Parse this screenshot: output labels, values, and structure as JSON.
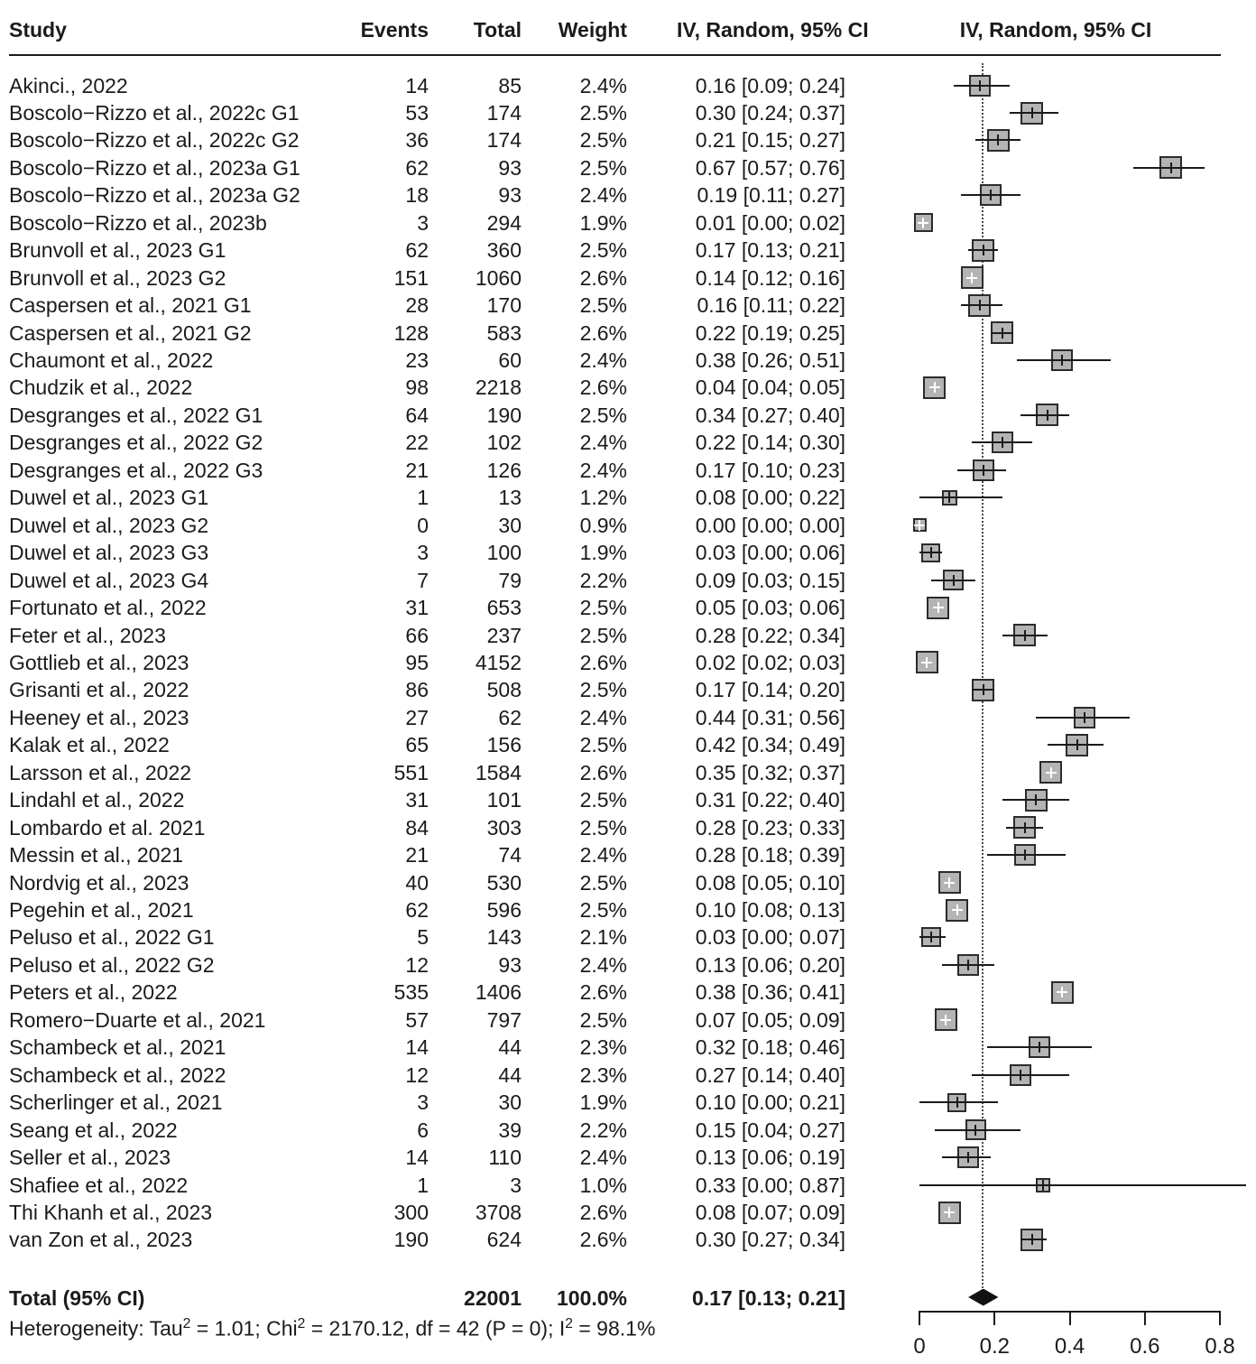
{
  "chart_data": {
    "type": "forest",
    "effect_measure_note": "proportions with 95% confidence intervals, inverse-variance random-effects model",
    "headers": {
      "study": "Study",
      "events": "Events",
      "total": "Total",
      "weight": "Weight",
      "ci": "IV, Random, 95% CI",
      "plot": "IV, Random, 95% CI"
    },
    "rows": [
      {
        "study": "Akinci., 2022",
        "events": "14",
        "total": "85",
        "weight": "2.4%",
        "ci": "0.16 [0.09; 0.24]",
        "est": 0.16,
        "lo": 0.09,
        "hi": 0.24,
        "w": 2.4
      },
      {
        "study": "Boscolo−Rizzo et al., 2022c G1",
        "events": "53",
        "total": "174",
        "weight": "2.5%",
        "ci": "0.30 [0.24; 0.37]",
        "est": 0.3,
        "lo": 0.24,
        "hi": 0.37,
        "w": 2.5
      },
      {
        "study": "Boscolo−Rizzo et al., 2022c G2",
        "events": "36",
        "total": "174",
        "weight": "2.5%",
        "ci": "0.21 [0.15; 0.27]",
        "est": 0.21,
        "lo": 0.15,
        "hi": 0.27,
        "w": 2.5
      },
      {
        "study": "Boscolo−Rizzo et al., 2023a G1",
        "events": "62",
        "total": "93",
        "weight": "2.5%",
        "ci": "0.67 [0.57; 0.76]",
        "est": 0.67,
        "lo": 0.57,
        "hi": 0.76,
        "w": 2.5
      },
      {
        "study": "Boscolo−Rizzo et al., 2023a G2",
        "events": "18",
        "total": "93",
        "weight": "2.4%",
        "ci": "0.19 [0.11; 0.27]",
        "est": 0.19,
        "lo": 0.11,
        "hi": 0.27,
        "w": 2.4
      },
      {
        "study": "Boscolo−Rizzo et al., 2023b",
        "events": "3",
        "total": "294",
        "weight": "1.9%",
        "ci": "0.01 [0.00; 0.02]",
        "est": 0.01,
        "lo": 0.0,
        "hi": 0.02,
        "w": 1.9
      },
      {
        "study": "Brunvoll et al., 2023 G1",
        "events": "62",
        "total": "360",
        "weight": "2.5%",
        "ci": "0.17 [0.13; 0.21]",
        "est": 0.17,
        "lo": 0.13,
        "hi": 0.21,
        "w": 2.5
      },
      {
        "study": "Brunvoll et al., 2023 G2",
        "events": "151",
        "total": "1060",
        "weight": "2.6%",
        "ci": "0.14 [0.12; 0.16]",
        "est": 0.14,
        "lo": 0.12,
        "hi": 0.16,
        "w": 2.6
      },
      {
        "study": "Caspersen et al., 2021 G1",
        "events": "28",
        "total": "170",
        "weight": "2.5%",
        "ci": "0.16 [0.11; 0.22]",
        "est": 0.16,
        "lo": 0.11,
        "hi": 0.22,
        "w": 2.5
      },
      {
        "study": "Caspersen et al., 2021 G2",
        "events": "128",
        "total": "583",
        "weight": "2.6%",
        "ci": "0.22 [0.19; 0.25]",
        "est": 0.22,
        "lo": 0.19,
        "hi": 0.25,
        "w": 2.6
      },
      {
        "study": "Chaumont et al., 2022",
        "events": "23",
        "total": "60",
        "weight": "2.4%",
        "ci": "0.38 [0.26; 0.51]",
        "est": 0.38,
        "lo": 0.26,
        "hi": 0.51,
        "w": 2.4
      },
      {
        "study": "Chudzik et al., 2022",
        "events": "98",
        "total": "2218",
        "weight": "2.6%",
        "ci": "0.04 [0.04; 0.05]",
        "est": 0.04,
        "lo": 0.04,
        "hi": 0.05,
        "w": 2.6
      },
      {
        "study": "Desgranges et al., 2022 G1",
        "events": "64",
        "total": "190",
        "weight": "2.5%",
        "ci": "0.34 [0.27; 0.40]",
        "est": 0.34,
        "lo": 0.27,
        "hi": 0.4,
        "w": 2.5
      },
      {
        "study": "Desgranges et al., 2022 G2",
        "events": "22",
        "total": "102",
        "weight": "2.4%",
        "ci": "0.22 [0.14; 0.30]",
        "est": 0.22,
        "lo": 0.14,
        "hi": 0.3,
        "w": 2.4
      },
      {
        "study": "Desgranges et al., 2022 G3",
        "events": "21",
        "total": "126",
        "weight": "2.4%",
        "ci": "0.17 [0.10; 0.23]",
        "est": 0.17,
        "lo": 0.1,
        "hi": 0.23,
        "w": 2.4
      },
      {
        "study": "Duwel et al., 2023 G1",
        "events": "1",
        "total": "13",
        "weight": "1.2%",
        "ci": "0.08 [0.00; 0.22]",
        "est": 0.08,
        "lo": 0.0,
        "hi": 0.22,
        "w": 1.2
      },
      {
        "study": "Duwel et al., 2023 G2",
        "events": "0",
        "total": "30",
        "weight": "0.9%",
        "ci": "0.00 [0.00; 0.00]",
        "est": 0.0,
        "lo": 0.0,
        "hi": 0.0,
        "w": 0.9
      },
      {
        "study": "Duwel et al., 2023 G3",
        "events": "3",
        "total": "100",
        "weight": "1.9%",
        "ci": "0.03 [0.00; 0.06]",
        "est": 0.03,
        "lo": 0.0,
        "hi": 0.06,
        "w": 1.9
      },
      {
        "study": "Duwel et al., 2023 G4",
        "events": "7",
        "total": "79",
        "weight": "2.2%",
        "ci": "0.09 [0.03; 0.15]",
        "est": 0.09,
        "lo": 0.03,
        "hi": 0.15,
        "w": 2.2
      },
      {
        "study": "Fortunato et al., 2022",
        "events": "31",
        "total": "653",
        "weight": "2.5%",
        "ci": "0.05 [0.03; 0.06]",
        "est": 0.05,
        "lo": 0.03,
        "hi": 0.06,
        "w": 2.5
      },
      {
        "study": "Feter et al., 2023",
        "events": "66",
        "total": "237",
        "weight": "2.5%",
        "ci": "0.28 [0.22; 0.34]",
        "est": 0.28,
        "lo": 0.22,
        "hi": 0.34,
        "w": 2.5
      },
      {
        "study": "Gottlieb et al., 2023",
        "events": "95",
        "total": "4152",
        "weight": "2.6%",
        "ci": "0.02 [0.02; 0.03]",
        "est": 0.02,
        "lo": 0.02,
        "hi": 0.03,
        "w": 2.6
      },
      {
        "study": "Grisanti et al., 2022",
        "events": "86",
        "total": "508",
        "weight": "2.5%",
        "ci": "0.17 [0.14; 0.20]",
        "est": 0.17,
        "lo": 0.14,
        "hi": 0.2,
        "w": 2.5
      },
      {
        "study": "Heeney et al., 2023",
        "events": "27",
        "total": "62",
        "weight": "2.4%",
        "ci": "0.44 [0.31; 0.56]",
        "est": 0.44,
        "lo": 0.31,
        "hi": 0.56,
        "w": 2.4
      },
      {
        "study": "Kalak et al., 2022",
        "events": "65",
        "total": "156",
        "weight": "2.5%",
        "ci": "0.42 [0.34; 0.49]",
        "est": 0.42,
        "lo": 0.34,
        "hi": 0.49,
        "w": 2.5
      },
      {
        "study": "Larsson et al., 2022",
        "events": "551",
        "total": "1584",
        "weight": "2.6%",
        "ci": "0.35 [0.32; 0.37]",
        "est": 0.35,
        "lo": 0.32,
        "hi": 0.37,
        "w": 2.6
      },
      {
        "study": "Lindahl et al., 2022",
        "events": "31",
        "total": "101",
        "weight": "2.5%",
        "ci": "0.31 [0.22; 0.40]",
        "est": 0.31,
        "lo": 0.22,
        "hi": 0.4,
        "w": 2.5
      },
      {
        "study": "Lombardo et al. 2021",
        "events": "84",
        "total": "303",
        "weight": "2.5%",
        "ci": "0.28 [0.23; 0.33]",
        "est": 0.28,
        "lo": 0.23,
        "hi": 0.33,
        "w": 2.5
      },
      {
        "study": "Messin et al., 2021",
        "events": "21",
        "total": "74",
        "weight": "2.4%",
        "ci": "0.28 [0.18; 0.39]",
        "est": 0.28,
        "lo": 0.18,
        "hi": 0.39,
        "w": 2.4
      },
      {
        "study": "Nordvig et al., 2023",
        "events": "40",
        "total": "530",
        "weight": "2.5%",
        "ci": "0.08 [0.05; 0.10]",
        "est": 0.08,
        "lo": 0.05,
        "hi": 0.1,
        "w": 2.5
      },
      {
        "study": "Pegehin et al., 2021",
        "events": "62",
        "total": "596",
        "weight": "2.5%",
        "ci": "0.10 [0.08; 0.13]",
        "est": 0.1,
        "lo": 0.08,
        "hi": 0.13,
        "w": 2.5
      },
      {
        "study": "Peluso et al., 2022 G1",
        "events": "5",
        "total": "143",
        "weight": "2.1%",
        "ci": "0.03 [0.00; 0.07]",
        "est": 0.03,
        "lo": 0.0,
        "hi": 0.07,
        "w": 2.1
      },
      {
        "study": "Peluso et al., 2022 G2",
        "events": "12",
        "total": "93",
        "weight": "2.4%",
        "ci": "0.13 [0.06; 0.20]",
        "est": 0.13,
        "lo": 0.06,
        "hi": 0.2,
        "w": 2.4
      },
      {
        "study": "Peters et al., 2022",
        "events": "535",
        "total": "1406",
        "weight": "2.6%",
        "ci": "0.38 [0.36; 0.41]",
        "est": 0.38,
        "lo": 0.36,
        "hi": 0.41,
        "w": 2.6
      },
      {
        "study": "Romero−Duarte et al., 2021",
        "events": "57",
        "total": "797",
        "weight": "2.5%",
        "ci": "0.07 [0.05; 0.09]",
        "est": 0.07,
        "lo": 0.05,
        "hi": 0.09,
        "w": 2.5
      },
      {
        "study": "Schambeck et al., 2021",
        "events": "14",
        "total": "44",
        "weight": "2.3%",
        "ci": "0.32 [0.18; 0.46]",
        "est": 0.32,
        "lo": 0.18,
        "hi": 0.46,
        "w": 2.3
      },
      {
        "study": "Schambeck et al., 2022",
        "events": "12",
        "total": "44",
        "weight": "2.3%",
        "ci": "0.27 [0.14; 0.40]",
        "est": 0.27,
        "lo": 0.14,
        "hi": 0.4,
        "w": 2.3
      },
      {
        "study": "Scherlinger et al., 2021",
        "events": "3",
        "total": "30",
        "weight": "1.9%",
        "ci": "0.10 [0.00; 0.21]",
        "est": 0.1,
        "lo": 0.0,
        "hi": 0.21,
        "w": 1.9
      },
      {
        "study": "Seang et al., 2022",
        "events": "6",
        "total": "39",
        "weight": "2.2%",
        "ci": "0.15 [0.04; 0.27]",
        "est": 0.15,
        "lo": 0.04,
        "hi": 0.27,
        "w": 2.2
      },
      {
        "study": "Seller et al., 2023",
        "events": "14",
        "total": "110",
        "weight": "2.4%",
        "ci": "0.13 [0.06; 0.19]",
        "est": 0.13,
        "lo": 0.06,
        "hi": 0.19,
        "w": 2.4
      },
      {
        "study": "Shafiee et al., 2022",
        "events": "1",
        "total": "3",
        "weight": "1.0%",
        "ci": "0.33 [0.00; 0.87]",
        "est": 0.33,
        "lo": 0.0,
        "hi": 0.87,
        "w": 1.0
      },
      {
        "study": "Thi Khanh et al., 2023",
        "events": "300",
        "total": "3708",
        "weight": "2.6%",
        "ci": "0.08 [0.07; 0.09]",
        "est": 0.08,
        "lo": 0.07,
        "hi": 0.09,
        "w": 2.6
      },
      {
        "study": "van Zon et al., 2023",
        "events": "190",
        "total": "624",
        "weight": "2.6%",
        "ci": "0.30 [0.27; 0.34]",
        "est": 0.3,
        "lo": 0.27,
        "hi": 0.34,
        "w": 2.6
      }
    ],
    "total_row": {
      "label": "Total (95% CI)",
      "total": "22001",
      "weight": "100.0%",
      "ci": "0.17 [0.13; 0.21]",
      "est": 0.17,
      "lo": 0.13,
      "hi": 0.21
    },
    "heterogeneity_segments": [
      {
        "text": "Heterogeneity: Tau",
        "sup": false
      },
      {
        "text": "2",
        "sup": true
      },
      {
        "text": " = 1.01; Chi",
        "sup": false
      },
      {
        "text": "2",
        "sup": true
      },
      {
        "text": " = 2170.12, df = 42 (P = 0); I",
        "sup": false
      },
      {
        "text": "2",
        "sup": true
      },
      {
        "text": " = 98.1%",
        "sup": false
      }
    ],
    "xaxis": {
      "ticks": [
        {
          "value": 0,
          "label": "0"
        },
        {
          "value": 0.2,
          "label": "0.2"
        },
        {
          "value": 0.4,
          "label": "0.4"
        },
        {
          "value": 0.6,
          "label": "0.6"
        },
        {
          "value": 0.8,
          "label": "0.8"
        }
      ],
      "xlim": [
        0,
        0.8
      ],
      "null_line_value": 0.17
    },
    "layout_hints": {
      "grid": false,
      "legend": "none"
    },
    "colors": {
      "square_fill": "#b4b4b4",
      "square_border": "#2b2b2b",
      "ci_line": "#1b1b1b",
      "diamond": "#111111",
      "text": "#1b1b1b"
    }
  }
}
